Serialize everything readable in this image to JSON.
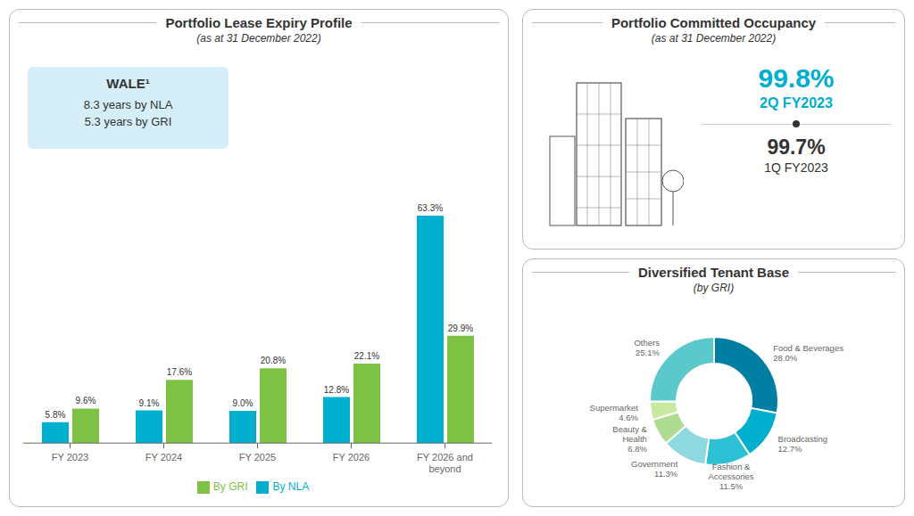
{
  "chart_data": [
    {
      "type": "bar",
      "title": "Portfolio Lease Expiry Profile",
      "subtitle": "(as at 31 December 2022)",
      "annotations": [
        "WALE¹",
        "8.3 years by NLA",
        "5.3 years by GRI"
      ],
      "categories": [
        "FY 2023",
        "FY 2024",
        "FY 2025",
        "FY 2026",
        "FY 2026 and\nbeyond"
      ],
      "series": [
        {
          "name": "By NLA",
          "color": "#00AECD",
          "values": [
            5.8,
            9.1,
            9.0,
            12.8,
            63.3
          ],
          "value_labels": [
            "5.8%",
            "9.1%",
            "9.0%",
            "12.8%",
            "63.3%"
          ]
        },
        {
          "name": "By GRI",
          "color": "#7DC242",
          "values": [
            9.6,
            17.6,
            20.8,
            22.1,
            29.9
          ],
          "value_labels": [
            "9.6%",
            "17.6%",
            "20.8%",
            "22.1%",
            "29.9%"
          ]
        }
      ],
      "ylim": [
        0,
        74
      ],
      "data_labels": true,
      "tick_labels": "x",
      "legend": "bottom",
      "grid": false
    },
    {
      "type": "kpi",
      "title": "Portfolio Committed Occupancy",
      "subtitle": "(as at 31 December 2022)",
      "categories": [
        "2Q FY2023",
        "1Q FY2023"
      ],
      "values": [
        99.8,
        99.7
      ],
      "value_labels": [
        "99.8%",
        "99.7%"
      ],
      "colors": [
        "#00AECD",
        "#333333"
      ]
    },
    {
      "type": "donut",
      "title": "Diversified Tenant Base",
      "subtitle": "(by GRI)",
      "categories": [
        "Food & Beverages",
        "Broadcasting",
        "Fashion &\nAccessories",
        "Government",
        "Beauty &\nHealth",
        "Supermarket",
        "Others"
      ],
      "values": [
        28.0,
        12.7,
        11.5,
        11.3,
        6.8,
        4.6,
        25.1
      ],
      "value_labels": [
        "28.0%",
        "12.7%",
        "11.5%",
        "11.3%",
        "6.8%",
        "4.6%",
        "25.1%"
      ],
      "colors": [
        "#007FA3",
        "#00AECD",
        "#2DC0D5",
        "#8ED8E0",
        "#ADDC91",
        "#C8EAA0",
        "#5BC8CC"
      ],
      "data_labels": true
    }
  ]
}
